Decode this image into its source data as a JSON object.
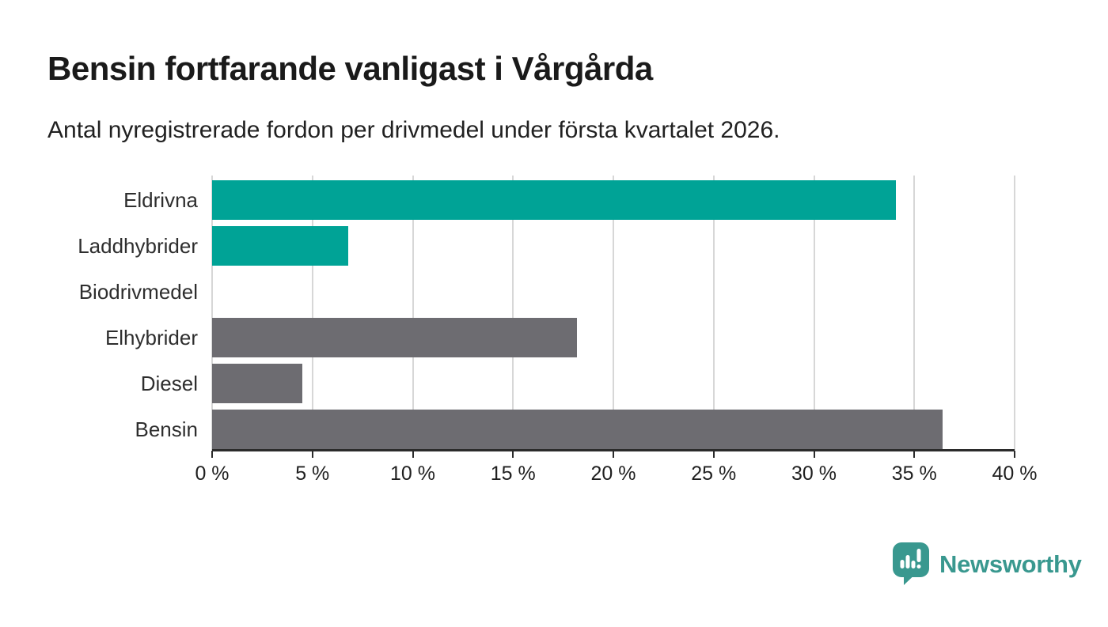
{
  "header": {
    "title": "Bensin fortfarande vanligast i Vårgårda",
    "subtitle": "Antal nyregistrerade fordon per drivmedel under första kvartalet 2026."
  },
  "chart_data": {
    "type": "bar",
    "orientation": "horizontal",
    "title": "Bensin fortfarande vanligast i Vårgårda",
    "subtitle": "Antal nyregistrerade fordon per drivmedel under första kvartalet 2026.",
    "categories": [
      "Eldrivna",
      "Laddhybrider",
      "Biodrivmedel",
      "Elhybrider",
      "Diesel",
      "Bensin"
    ],
    "values": [
      34.1,
      6.8,
      0,
      18.2,
      4.5,
      36.4
    ],
    "unit": "%",
    "bar_colors": [
      "#00a396",
      "#00a396",
      "#00a396",
      "#6d6c71",
      "#6d6c71",
      "#6d6c71"
    ],
    "xlabel": "",
    "ylabel": "",
    "xlim": [
      0,
      40
    ],
    "x_ticks": [
      0,
      5,
      10,
      15,
      20,
      25,
      30,
      35,
      40
    ],
    "x_tick_labels": [
      "0 %",
      "5 %",
      "10 %",
      "15 %",
      "20 %",
      "25 %",
      "30 %",
      "35 %",
      "40 %"
    ],
    "grid": "vertical-only",
    "legend": "none"
  },
  "colors": {
    "teal": "#00a396",
    "gray": "#6d6c71",
    "gridline": "#d7d7d7",
    "axis": "#2b2b2b",
    "brand": "#39988f"
  },
  "footer": {
    "brand": "Newsworthy"
  }
}
